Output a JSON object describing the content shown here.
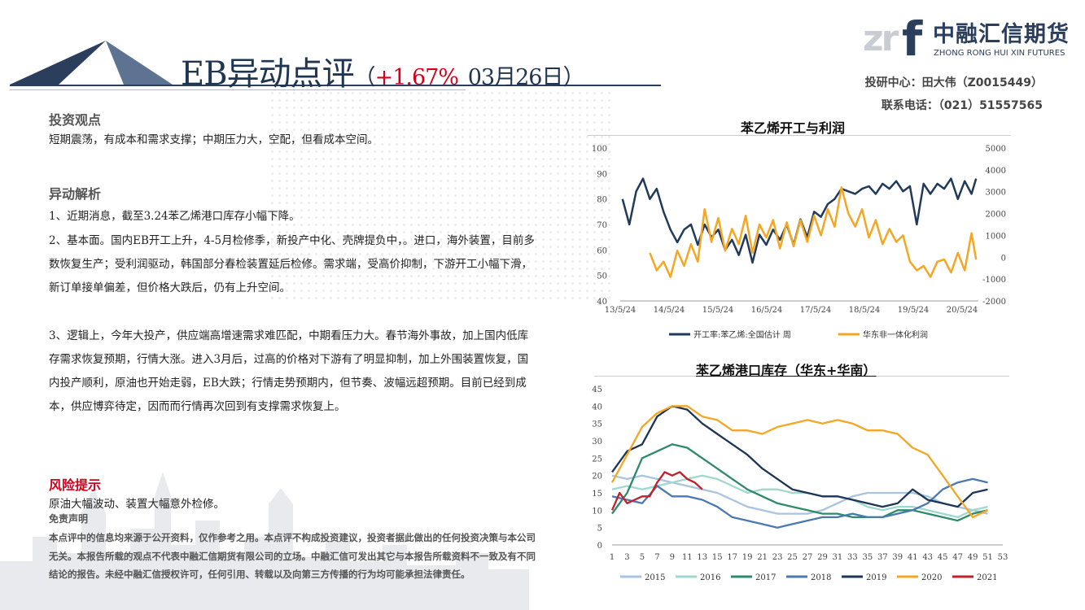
{
  "header": {
    "title_prefix": "EB异动点评",
    "paren_open": "（",
    "change": "+1.67%",
    "date": "03月26日",
    "paren_close": "）"
  },
  "logo": {
    "mark": "zr",
    "mark_f": "f",
    "name_cn": "中融汇信期货",
    "name_en": "ZHONG RONG HUI XIN FUTURES"
  },
  "contact": {
    "line1": "投研中心：田大伟（Z0015449）",
    "line2": "联系电话：（021）51557565"
  },
  "sections": {
    "view_heading": "投资观点",
    "view_text": "短期震荡，有成本和需求支撑；中期压力大，空配，但看成本空间。",
    "analysis_heading": "异动解析",
    "analysis_p1": "1、近期消息，截至3.24苯乙烯港口库存小幅下降。",
    "analysis_p2": "2、基本面。国内EB开工上升，4-5月检修季，新投产中化、壳牌提负中，。进口，海外装置，目前多数恢复生产；受利润驱动，韩国部分春检装置延后检修。需求端，受高价抑制，下游开工小幅下滑，新订单接单偏差，但价格大跌后，仍有上升空间。",
    "analysis_p3": "3、逻辑上，今年大投产，供应端高增速需求难匹配，中期看压力大。春节海外事故，加上国内低库存需求恢复预期，行情大涨。进入3月后，过高的价格对下游有了明显抑制，加上外围装置恢复，国内投产顺利，原油也开始走弱，EB大跌；行情走势预期内，但节奏、波幅远超预期。目前已经到成本，供应博弈待定，因而而行情再次回到有支撑需求恢复上。",
    "risk_heading": "风险提示",
    "risk_text": "原油大幅波动、装置大幅意外检修。"
  },
  "disclaimer": {
    "heading": "免责声明",
    "text": "本点评中的信息均来源于公开资料，仅作参考之用。本点评不构成投资建议，投资者据此做出的任何投资决策与本公司无关。本报告所载的观点不代表中融汇信期货有限公司的立场。中融汇信可发出其它与本报告所载资料不一致及有不同结论的报告。未经中融汇信授权许可，任何引用、转载以及向第三方传播的行为均可能承担法律责任。"
  },
  "colors": {
    "navy": "#1f3552",
    "red": "#d0021b",
    "line_navy": "#203a59",
    "line_orange": "#f5a623"
  },
  "chart_data": [
    {
      "type": "line",
      "title": "苯乙烯开工与利润",
      "x_tick_labels": [
        "13/5/24",
        "14/5/24",
        "15/5/24",
        "16/5/24",
        "17/5/24",
        "18/5/24",
        "19/5/24",
        "20/5/24"
      ],
      "y_left_ticks": [
        "100",
        "90",
        "80",
        "70",
        "60",
        "50",
        "40"
      ],
      "y_right_ticks": [
        "5000",
        "4000",
        "3000",
        "2000",
        "1000",
        "0",
        "-1000",
        "-2000"
      ],
      "ylim_left": [
        40,
        100
      ],
      "ylim_right": [
        -2000,
        5000
      ],
      "xlim": [
        2013.4,
        2021.25
      ],
      "grid": false,
      "legend_position": "bottom",
      "series": [
        {
          "name": "开工率:苯乙烯:全国估计 周",
          "axis": "left",
          "color": "#203a59",
          "x": [
            2013.45,
            2013.6,
            2013.75,
            2013.9,
            2014.05,
            2014.2,
            2014.35,
            2014.5,
            2014.65,
            2014.8,
            2014.95,
            2015.1,
            2015.25,
            2015.4,
            2015.55,
            2015.7,
            2015.85,
            2016.0,
            2016.15,
            2016.3,
            2016.45,
            2016.6,
            2016.75,
            2016.9,
            2017.05,
            2017.2,
            2017.35,
            2017.5,
            2017.65,
            2017.8,
            2017.95,
            2018.1,
            2018.25,
            2018.4,
            2018.55,
            2018.7,
            2018.85,
            2019.0,
            2019.15,
            2019.3,
            2019.45,
            2019.6,
            2019.75,
            2019.9,
            2020.05,
            2020.2,
            2020.35,
            2020.5,
            2020.65,
            2020.8,
            2020.95,
            2021.1,
            2021.2
          ],
          "values": [
            80,
            70,
            83,
            88,
            80,
            84,
            75,
            68,
            63,
            68,
            70,
            62,
            70,
            65,
            68,
            60,
            64,
            58,
            66,
            55,
            66,
            62,
            68,
            64,
            70,
            62,
            72,
            65,
            75,
            73,
            78,
            80,
            84,
            83,
            82,
            84,
            85,
            82,
            86,
            84,
            87,
            83,
            85,
            70,
            86,
            82,
            86,
            84,
            88,
            80,
            87,
            82,
            88
          ]
        },
        {
          "name": "华东非一体化利润",
          "axis": "right",
          "color": "#f5a623",
          "x": [
            2014.05,
            2014.2,
            2014.35,
            2014.5,
            2014.65,
            2014.8,
            2014.95,
            2015.1,
            2015.25,
            2015.4,
            2015.55,
            2015.7,
            2015.85,
            2016.0,
            2016.15,
            2016.3,
            2016.45,
            2016.6,
            2016.75,
            2016.9,
            2017.05,
            2017.2,
            2017.35,
            2017.5,
            2017.65,
            2017.8,
            2017.95,
            2018.1,
            2018.25,
            2018.4,
            2018.55,
            2018.7,
            2018.85,
            2019.0,
            2019.15,
            2019.3,
            2019.45,
            2019.6,
            2019.75,
            2019.9,
            2020.05,
            2020.2,
            2020.35,
            2020.5,
            2020.65,
            2020.8,
            2020.95,
            2021.1,
            2021.2
          ],
          "values": [
            200,
            -600,
            -200,
            -900,
            300,
            -400,
            600,
            -200,
            2200,
            700,
            1800,
            300,
            1300,
            600,
            1900,
            200,
            1500,
            900,
            1700,
            400,
            1600,
            500,
            1700,
            700,
            1900,
            1000,
            2200,
            1400,
            3200,
            2000,
            1400,
            2200,
            900,
            1700,
            600,
            1300,
            700,
            1000,
            -200,
            -600,
            -400,
            -900,
            -200,
            -100,
            -700,
            200,
            -600,
            1100,
            -100
          ]
        }
      ]
    },
    {
      "type": "line",
      "title": "苯乙烯港口库存（华东+华南）",
      "categories": [
        "1",
        "3",
        "5",
        "7",
        "9",
        "11",
        "13",
        "15",
        "17",
        "19",
        "21",
        "23",
        "25",
        "27",
        "29",
        "31",
        "33",
        "35",
        "37",
        "39",
        "41",
        "43",
        "45",
        "47",
        "49",
        "51",
        "53"
      ],
      "y_ticks": [
        "45",
        "40",
        "35",
        "30",
        "25",
        "20",
        "15",
        "10",
        "5",
        "0"
      ],
      "ylim": [
        0,
        45
      ],
      "xlim": [
        1,
        53
      ],
      "grid": false,
      "legend_position": "bottom",
      "series": [
        {
          "name": "2015",
          "color": "#a9c4e0",
          "x": [
            1,
            3,
            5,
            7,
            9,
            11,
            13,
            15,
            17,
            19,
            21,
            23,
            25,
            27,
            29,
            31,
            33,
            35,
            37,
            39,
            41,
            43,
            45,
            47,
            49,
            51
          ],
          "values": [
            20,
            19,
            20,
            19,
            18,
            17,
            16,
            15,
            13,
            11,
            10,
            9,
            9,
            9,
            10,
            12,
            14,
            15,
            15,
            15,
            15,
            14,
            12,
            11,
            10,
            9
          ]
        },
        {
          "name": "2016",
          "color": "#9fd8cf",
          "x": [
            1,
            3,
            5,
            7,
            9,
            11,
            13,
            15,
            17,
            19,
            21,
            23,
            25,
            27,
            29,
            31,
            33,
            35,
            37,
            39,
            41,
            43,
            45,
            47,
            49,
            51
          ],
          "values": [
            16,
            17,
            16,
            17,
            18,
            19,
            20,
            19,
            17,
            15,
            16,
            16,
            15,
            15,
            14,
            14,
            13,
            11,
            10,
            11,
            11,
            10,
            9,
            8,
            10,
            11
          ]
        },
        {
          "name": "2017",
          "color": "#2e8b6a",
          "x": [
            1,
            3,
            5,
            7,
            9,
            11,
            13,
            15,
            17,
            19,
            21,
            23,
            25,
            27,
            29,
            31,
            33,
            35,
            37,
            39,
            41,
            43,
            45,
            47,
            49,
            51
          ],
          "values": [
            9,
            15,
            25,
            27,
            29,
            28,
            25,
            22,
            19,
            16,
            14,
            12,
            11,
            10,
            9,
            9,
            8,
            8,
            8,
            10,
            10,
            9,
            8,
            7,
            9,
            10
          ]
        },
        {
          "name": "2018",
          "color": "#4a78b0",
          "x": [
            1,
            3,
            5,
            7,
            9,
            11,
            13,
            15,
            17,
            19,
            21,
            23,
            25,
            27,
            29,
            31,
            33,
            35,
            37,
            39,
            41,
            43,
            45,
            47,
            49,
            51
          ],
          "values": [
            14,
            13,
            12,
            17,
            14,
            14,
            13,
            11,
            8,
            7,
            6,
            5,
            6,
            7,
            8,
            8,
            9,
            8,
            8,
            9,
            10,
            12,
            16,
            18,
            19,
            18
          ]
        },
        {
          "name": "2019",
          "color": "#1d3557",
          "x": [
            1,
            3,
            5,
            7,
            9,
            11,
            13,
            15,
            17,
            19,
            21,
            23,
            25,
            27,
            29,
            31,
            33,
            35,
            37,
            39,
            41,
            43,
            45,
            47,
            49,
            51
          ],
          "values": [
            21,
            27,
            29,
            37,
            40,
            39,
            35,
            32,
            29,
            26,
            22,
            19,
            16,
            15,
            14,
            14,
            13,
            12,
            11,
            12,
            16,
            13,
            12,
            11,
            15,
            16
          ]
        },
        {
          "name": "2020",
          "color": "#f5a623",
          "x": [
            1,
            3,
            5,
            7,
            9,
            11,
            13,
            15,
            17,
            19,
            21,
            23,
            25,
            27,
            29,
            31,
            33,
            35,
            37,
            39,
            41,
            43,
            45,
            47,
            49,
            51
          ],
          "values": [
            18,
            26,
            34,
            38,
            40,
            40,
            37,
            36,
            33,
            33,
            32,
            34,
            35,
            36,
            35,
            36,
            35,
            33,
            33,
            32,
            28,
            26,
            20,
            14,
            8,
            10
          ]
        },
        {
          "name": "2021",
          "color": "#c0202a",
          "x": [
            1,
            2,
            3,
            4,
            5,
            6,
            7,
            8,
            9,
            10,
            11,
            12,
            13
          ],
          "values": [
            10,
            15,
            12,
            13,
            14,
            14,
            18,
            21,
            20,
            21,
            19,
            18,
            16
          ]
        }
      ]
    }
  ]
}
